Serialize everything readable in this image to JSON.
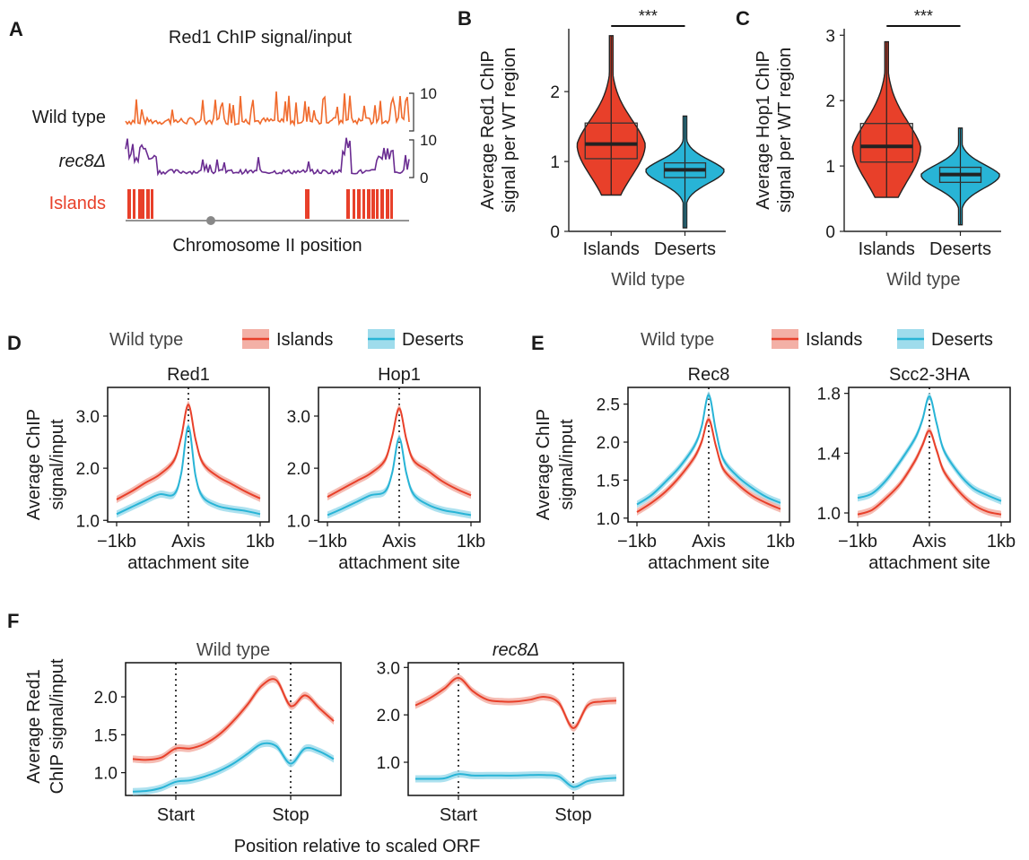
{
  "colors": {
    "islands": "#e8402a",
    "islands_band": "#f3b0a6",
    "deserts": "#28b4d6",
    "deserts_band": "#9fdcec",
    "wildtype_track": "#f06a2c",
    "rec8_track": "#6a2c91",
    "grey_dot": "#888888"
  },
  "panel_A": {
    "letter": "A",
    "title": "Red1 ChIP signal/input",
    "row_labels": [
      "Wild type",
      "rec8Δ",
      "Islands"
    ],
    "scale_labels": [
      "10",
      "10",
      "0"
    ],
    "xlabel": "Chromosome II position"
  },
  "panel_B": {
    "letter": "B",
    "ylabel_lines": [
      "Average  Red1 ChIP",
      "signal per WT region"
    ],
    "categories": [
      "Islands",
      "Deserts"
    ],
    "xlabel": "Wild type",
    "sig": "***",
    "yticks": [
      "0",
      "1",
      "2"
    ]
  },
  "panel_C": {
    "letter": "C",
    "ylabel_lines": [
      "Average  Hop1 ChIP",
      "signal per WT region"
    ],
    "categories": [
      "Islands",
      "Deserts"
    ],
    "xlabel": "Wild type",
    "sig": "***",
    "yticks": [
      "0",
      "1",
      "2",
      "3"
    ]
  },
  "legend": {
    "title": "Wild type",
    "islands": "Islands",
    "deserts": "Deserts"
  },
  "panel_D": {
    "letter": "D",
    "ylabel_lines": [
      "Average ChIP",
      "signal/input"
    ],
    "xticks": [
      "−1kb",
      "Axis",
      "1kb"
    ],
    "xlabel": "attachment site"
  },
  "panel_E": {
    "letter": "E",
    "ylabel_lines": [
      "Average ChIP",
      "signal/input"
    ],
    "xticks": [
      "−1kb",
      "Axis",
      "1kb"
    ],
    "xlabel": "attachment site"
  },
  "panel_F": {
    "letter": "F",
    "ylabel_lines": [
      "Average Red1",
      "ChIP signal/input"
    ],
    "xticks": [
      "Start",
      "Stop"
    ],
    "xlabel": "Position relative to scaled ORF"
  },
  "chart_data": [
    {
      "id": "B",
      "type": "violin",
      "categories": [
        "Islands",
        "Deserts"
      ],
      "ylabel": "Average Red1 ChIP signal per WT region",
      "xlabel": "Wild type",
      "ylim": [
        0,
        2.9
      ],
      "summary": [
        {
          "name": "Islands",
          "min": 0.52,
          "q1": 1.04,
          "median": 1.25,
          "q3": 1.55,
          "max": 2.8
        },
        {
          "name": "Deserts",
          "min": 0.05,
          "q1": 0.77,
          "median": 0.88,
          "q3": 0.98,
          "max": 1.65
        }
      ]
    },
    {
      "id": "C",
      "type": "violin",
      "categories": [
        "Islands",
        "Deserts"
      ],
      "ylabel": "Average Hop1 ChIP signal per WT region",
      "xlabel": "Wild type",
      "ylim": [
        0,
        3.1
      ],
      "summary": [
        {
          "name": "Islands",
          "min": 0.52,
          "q1": 1.06,
          "median": 1.3,
          "q3": 1.65,
          "max": 2.9
        },
        {
          "name": "Deserts",
          "min": 0.1,
          "q1": 0.75,
          "median": 0.87,
          "q3": 0.98,
          "max": 1.58
        }
      ]
    },
    {
      "id": "D-Red1",
      "type": "line",
      "title": "Red1",
      "ylim": [
        0.97,
        3.55
      ],
      "yticks": [
        1.0,
        2.0,
        3.0
      ],
      "x": [
        -1000,
        -800,
        -600,
        -400,
        -200,
        -100,
        0,
        100,
        200,
        400,
        600,
        800,
        1000
      ],
      "series": [
        {
          "name": "Islands",
          "values": [
            1.4,
            1.55,
            1.72,
            1.88,
            2.15,
            2.6,
            3.22,
            2.55,
            2.1,
            1.85,
            1.7,
            1.55,
            1.42
          ]
        },
        {
          "name": "Deserts",
          "values": [
            1.12,
            1.25,
            1.38,
            1.5,
            1.5,
            1.9,
            2.8,
            1.85,
            1.45,
            1.28,
            1.22,
            1.18,
            1.12
          ]
        }
      ]
    },
    {
      "id": "D-Hop1",
      "type": "line",
      "title": "Hop1",
      "ylim": [
        0.97,
        3.55
      ],
      "yticks": [
        1.0,
        2.0,
        3.0
      ],
      "x": [
        -1000,
        -800,
        -600,
        -400,
        -200,
        -100,
        0,
        100,
        200,
        400,
        600,
        800,
        1000
      ],
      "series": [
        {
          "name": "Islands",
          "values": [
            1.45,
            1.6,
            1.75,
            1.9,
            2.15,
            2.6,
            3.15,
            2.55,
            2.15,
            1.95,
            1.75,
            1.6,
            1.48
          ]
        },
        {
          "name": "Deserts",
          "values": [
            1.1,
            1.22,
            1.35,
            1.48,
            1.55,
            1.9,
            2.58,
            1.9,
            1.5,
            1.3,
            1.2,
            1.15,
            1.1
          ]
        }
      ]
    },
    {
      "id": "E-Rec8",
      "type": "line",
      "title": "Rec8",
      "ylim": [
        0.95,
        2.72
      ],
      "yticks": [
        1.0,
        1.5,
        2.0,
        2.5
      ],
      "x": [
        -1000,
        -800,
        -600,
        -400,
        -200,
        -100,
        0,
        100,
        200,
        400,
        600,
        800,
        1000
      ],
      "series": [
        {
          "name": "Islands",
          "values": [
            1.08,
            1.2,
            1.35,
            1.55,
            1.8,
            2.0,
            2.3,
            1.95,
            1.65,
            1.45,
            1.3,
            1.2,
            1.12
          ]
        },
        {
          "name": "Deserts",
          "values": [
            1.18,
            1.3,
            1.48,
            1.68,
            1.95,
            2.2,
            2.62,
            2.15,
            1.78,
            1.55,
            1.4,
            1.28,
            1.2
          ]
        }
      ]
    },
    {
      "id": "E-Scc2-3HA",
      "type": "line",
      "title": "Scc2-3HA",
      "ylim": [
        0.94,
        1.84
      ],
      "yticks": [
        1.0,
        1.4,
        1.8
      ],
      "x": [
        -1000,
        -800,
        -600,
        -400,
        -200,
        -100,
        0,
        100,
        200,
        400,
        600,
        800,
        1000
      ],
      "series": [
        {
          "name": "Islands",
          "values": [
            0.99,
            1.02,
            1.1,
            1.2,
            1.35,
            1.45,
            1.55,
            1.42,
            1.28,
            1.15,
            1.06,
            1.01,
            0.99
          ]
        },
        {
          "name": "Deserts",
          "values": [
            1.1,
            1.13,
            1.22,
            1.35,
            1.5,
            1.62,
            1.78,
            1.6,
            1.42,
            1.27,
            1.17,
            1.12,
            1.08
          ]
        }
      ]
    },
    {
      "id": "F-WT",
      "type": "line",
      "title": "Wild type",
      "ylim": [
        0.7,
        2.45
      ],
      "yticks": [
        1.0,
        1.5,
        2.0
      ],
      "x": [
        "",
        "",
        "",
        "Start",
        "",
        "",
        "",
        "",
        "",
        "",
        "",
        "Stop",
        "",
        "",
        ""
      ],
      "series": [
        {
          "name": "Islands",
          "values": [
            1.18,
            1.17,
            1.2,
            1.32,
            1.32,
            1.38,
            1.5,
            1.68,
            1.9,
            2.15,
            2.22,
            1.88,
            2.02,
            1.85,
            1.68
          ]
        },
        {
          "name": "Deserts",
          "values": [
            0.75,
            0.76,
            0.8,
            0.88,
            0.9,
            0.95,
            1.02,
            1.12,
            1.25,
            1.38,
            1.35,
            1.12,
            1.32,
            1.28,
            1.18
          ]
        }
      ]
    },
    {
      "id": "F-rec8",
      "type": "line",
      "title": "rec8Δ",
      "ylim": [
        0.3,
        3.1
      ],
      "yticks": [
        1.0,
        2.0,
        3.0
      ],
      "x": [
        "",
        "",
        "",
        "Start",
        "",
        "",
        "",
        "",
        "",
        "",
        "",
        "Stop",
        "",
        "",
        ""
      ],
      "series": [
        {
          "name": "Islands",
          "values": [
            2.2,
            2.35,
            2.55,
            2.78,
            2.5,
            2.32,
            2.28,
            2.28,
            2.32,
            2.38,
            2.25,
            1.72,
            2.2,
            2.28,
            2.3
          ]
        },
        {
          "name": "Deserts",
          "values": [
            0.65,
            0.65,
            0.66,
            0.75,
            0.72,
            0.72,
            0.72,
            0.72,
            0.73,
            0.73,
            0.7,
            0.48,
            0.6,
            0.65,
            0.67
          ]
        }
      ]
    }
  ]
}
